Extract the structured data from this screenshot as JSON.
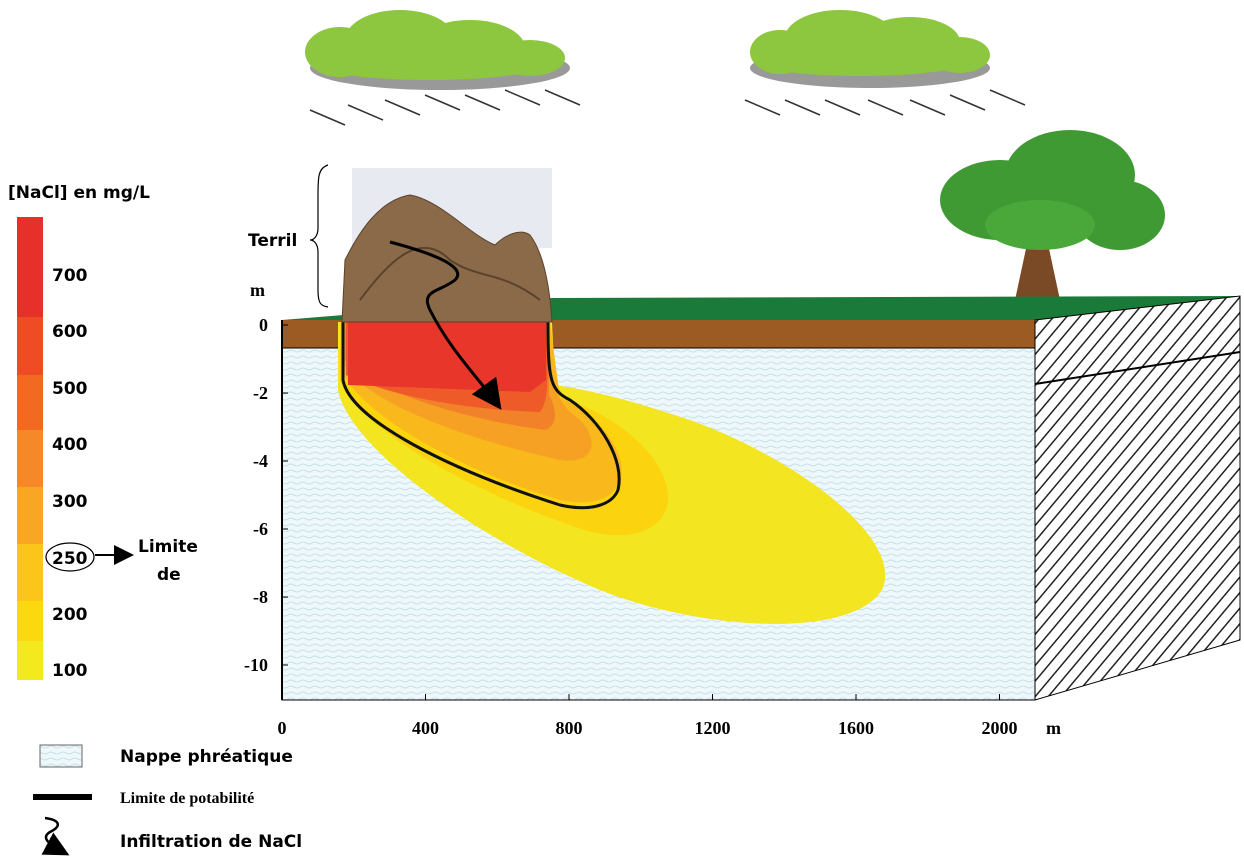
{
  "legend_bar": {
    "title": "[NaCl] en mg/L",
    "labels": [
      "700",
      "600",
      "500",
      "400",
      "300",
      "250",
      "200",
      "100"
    ],
    "limit_note": [
      "Limite",
      "de"
    ]
  },
  "terril": "Terril",
  "y_axis": {
    "unit": "m",
    "ticks": [
      "0",
      "-2",
      "-4",
      "-6",
      "-8",
      "-10"
    ]
  },
  "x_axis": {
    "unit": "m",
    "ticks": [
      "0",
      "400",
      "800",
      "1200",
      "1600",
      "2000"
    ]
  },
  "key": [
    "Nappe phréatique",
    "Limite de potabilité",
    "Infiltration de NaCl"
  ]
}
